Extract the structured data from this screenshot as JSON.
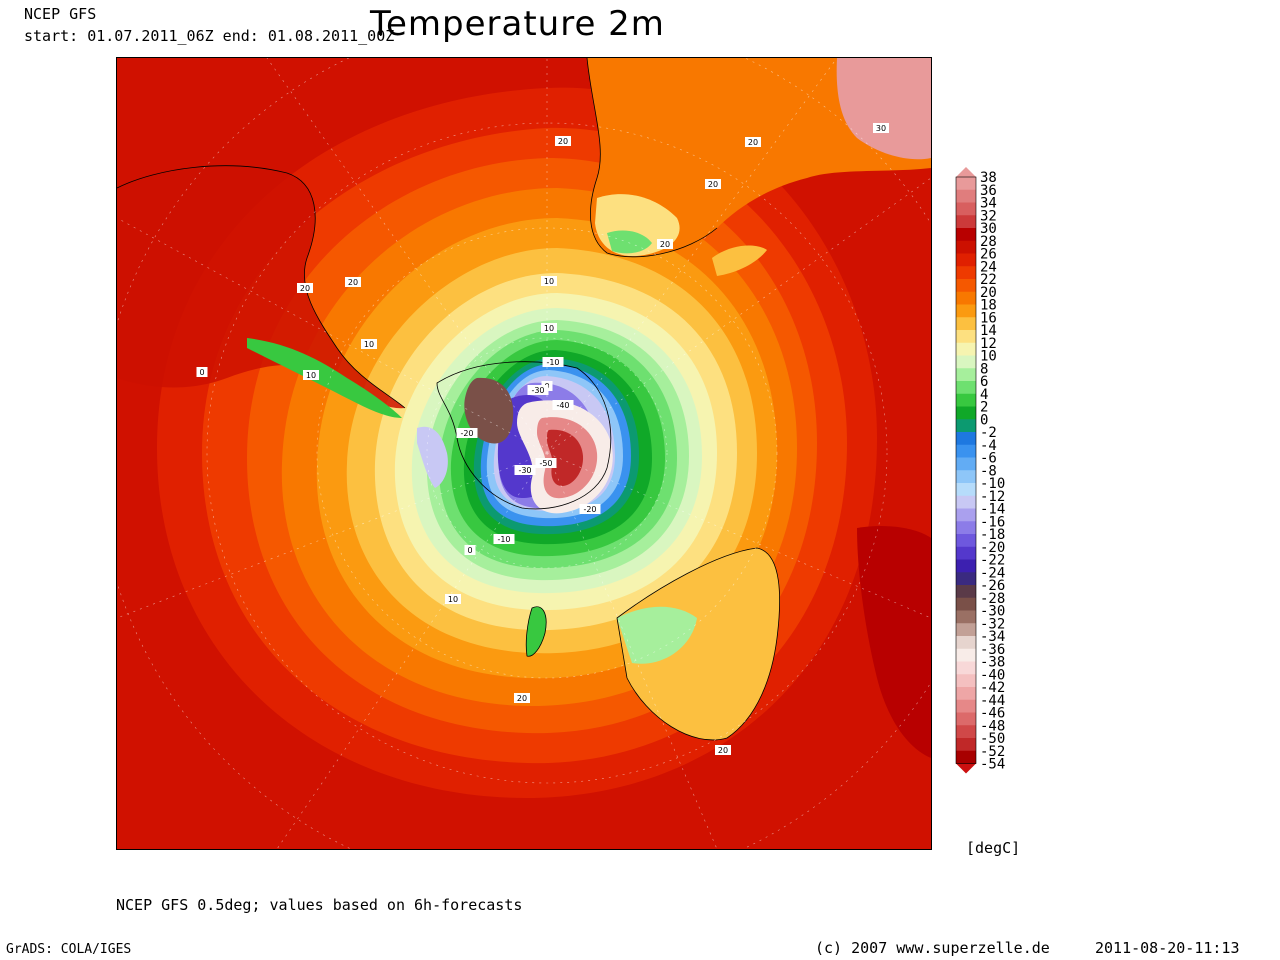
{
  "header": {
    "model": "NCEP GFS",
    "period": "start: 01.07.2011_06Z    end: 01.08.2011_00Z",
    "title": "Temperature 2m"
  },
  "footer": {
    "note": "NCEP GFS 0.5deg; values based on 6h-forecasts",
    "software": "GrADS: COLA/IGES",
    "copyright": "(c) 2007 www.superzelle.de",
    "timestamp": "2011-08-20-11:13"
  },
  "colorbar": {
    "unit": "[degC]",
    "ticks": [
      "38",
      "36",
      "34",
      "32",
      "30",
      "28",
      "26",
      "24",
      "22",
      "20",
      "18",
      "16",
      "14",
      "12",
      "10",
      "8",
      "6",
      "4",
      "2",
      "0",
      "-2",
      "-4",
      "-6",
      "-8",
      "-10",
      "-12",
      "-14",
      "-16",
      "-18",
      "-20",
      "-22",
      "-24",
      "-26",
      "-28",
      "-30",
      "-32",
      "-34",
      "-36",
      "-38",
      "-40",
      "-42",
      "-44",
      "-46",
      "-48",
      "-50",
      "-52",
      "-54"
    ],
    "colors": [
      "#e89a9a",
      "#e07d7d",
      "#d85f5f",
      "#cc3a3a",
      "#b80000",
      "#cc1000",
      "#e02000",
      "#ee3a00",
      "#f55800",
      "#f87800",
      "#fb9a10",
      "#fcc040",
      "#fde080",
      "#f6f4b0",
      "#d9f6c0",
      "#a6ef9c",
      "#6ee070",
      "#38c840",
      "#10a828",
      "#0c9a70",
      "#1e78e0",
      "#3a92ef",
      "#62acf4",
      "#8ec6f8",
      "#b6dcfb",
      "#c8c8f4",
      "#aaa0ee",
      "#8c7ce8",
      "#6e58de",
      "#5438cc",
      "#3c20b0",
      "#3a2a80",
      "#5a3a48",
      "#7a5048",
      "#9a7064",
      "#c2a096",
      "#e6d4ce",
      "#f8ece8",
      "#f8d8d8",
      "#f4c0c0",
      "#eea6a6",
      "#e68888",
      "#dc6a6a",
      "#d04848",
      "#c02828",
      "#a80000",
      "#cc1010"
    ]
  },
  "map": {
    "isotherm_labels": [
      "20",
      "20",
      "20",
      "20",
      "30",
      "20",
      "20",
      "10",
      "10",
      "0",
      "10",
      "10",
      "0",
      "-10",
      "-30",
      "-40",
      "-20",
      "-50",
      "-30",
      "-20",
      "-10",
      "0",
      "10",
      "20",
      "20"
    ]
  }
}
